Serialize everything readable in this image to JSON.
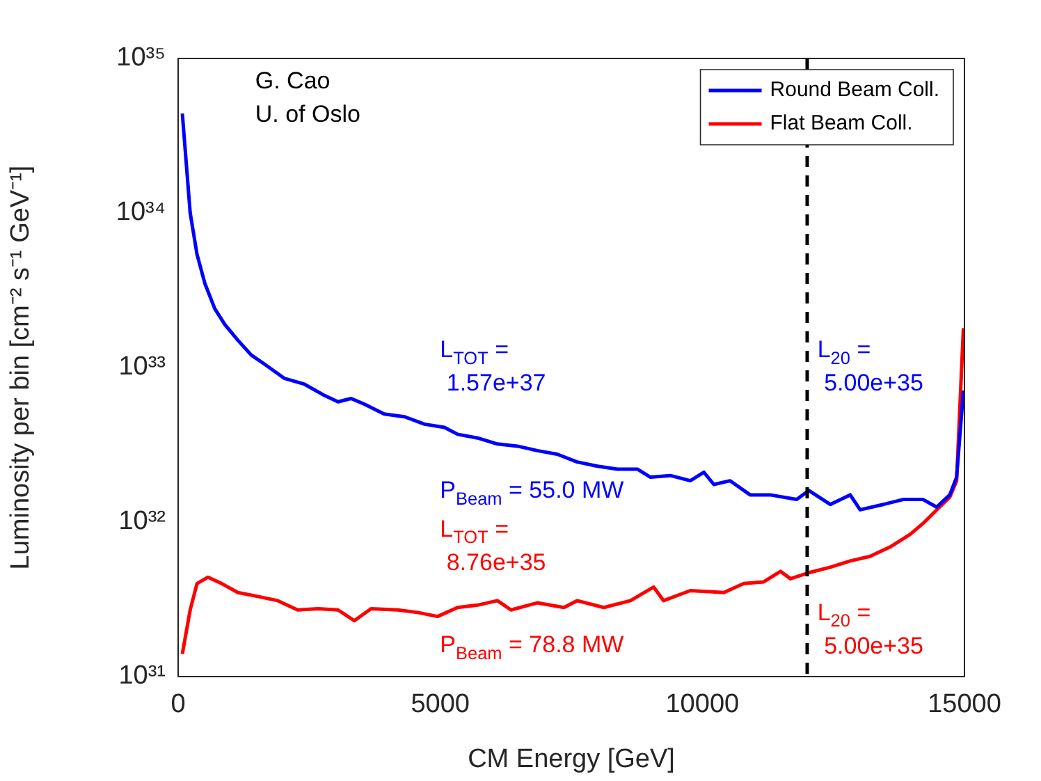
{
  "chart_data": {
    "type": "line",
    "xlabel": "CM Energy [GeV]",
    "ylabel": "Luminosity per bin [cm⁻² s⁻¹ GeV⁻¹]",
    "xlim": [
      0,
      15000
    ],
    "xticks": [
      0,
      5000,
      10000,
      15000
    ],
    "ylim": [
      1e+31,
      1e+35
    ],
    "yticks": [
      {
        "value": 1e+31,
        "label": "10³¹"
      },
      {
        "value": 1e+32,
        "label": "10³²"
      },
      {
        "value": 1e+33,
        "label": "10³³"
      },
      {
        "value": 1e+34,
        "label": "10³⁴"
      },
      {
        "value": 1e+35,
        "label": "10³⁵"
      }
    ],
    "log": "y",
    "grid": false,
    "legend": "top right",
    "marker": "none",
    "line_style": "solid",
    "series": [
      {
        "name": "Round Beam Coll.",
        "color": "#0000ff",
        "x": [
          80,
          230,
          360,
          510,
          700,
          890,
          1140,
          1400,
          1650,
          2030,
          2410,
          2790,
          3050,
          3300,
          3550,
          3930,
          4320,
          4700,
          5080,
          5330,
          5710,
          6090,
          6470,
          6850,
          7230,
          7610,
          8000,
          8380,
          8760,
          9010,
          9390,
          9770,
          10030,
          10220,
          10530,
          10910,
          11290,
          11800,
          12030,
          12440,
          12820,
          13010,
          13450,
          13830,
          14210,
          14470,
          14720,
          14850,
          14980
        ],
        "values": [
          4.4e+34,
          1e+34,
          5.4e+33,
          3.5e+33,
          2.4e+33,
          1.9e+33,
          1.5e+33,
          1.2e+33,
          1.05e+33,
          8.5e+32,
          7.8e+32,
          6.6e+32,
          6e+32,
          6.3e+32,
          5.8e+32,
          5e+32,
          4.8e+32,
          4.3e+32,
          4.1e+32,
          3.7e+32,
          3.5e+32,
          3.2e+32,
          3.1e+32,
          2.9e+32,
          2.75e+32,
          2.45e+32,
          2.3e+32,
          2.2e+32,
          2.2e+32,
          1.95e+32,
          2e+32,
          1.85e+32,
          2.1e+32,
          1.75e+32,
          1.85e+32,
          1.5e+32,
          1.5e+32,
          1.4e+32,
          1.6e+32,
          1.3e+32,
          1.5e+32,
          1.2e+32,
          1.3e+32,
          1.4e+32,
          1.4e+32,
          1.25e+32,
          1.5e+32,
          1.95e+32,
          7.1e+32
        ]
      },
      {
        "name": "Flat Beam Coll.",
        "color": "#ff0000",
        "x": [
          80,
          230,
          360,
          570,
          830,
          1140,
          1520,
          1900,
          2280,
          2670,
          3050,
          3360,
          3680,
          4190,
          4570,
          4950,
          5330,
          5710,
          6090,
          6350,
          6850,
          7360,
          7610,
          8120,
          8630,
          9070,
          9260,
          9770,
          10410,
          10790,
          11170,
          11490,
          11680,
          12030,
          12440,
          12820,
          13200,
          13580,
          13960,
          14210,
          14470,
          14720,
          14850,
          14980
        ],
        "values": [
          1.4e+31,
          2.7e+31,
          4e+31,
          4.4e+31,
          4e+31,
          3.5e+31,
          3.3e+31,
          3.1e+31,
          2.7e+31,
          2.75e+31,
          2.7e+31,
          2.3e+31,
          2.75e+31,
          2.7e+31,
          2.6e+31,
          2.45e+31,
          2.8e+31,
          2.9e+31,
          3.1e+31,
          2.7e+31,
          3e+31,
          2.8e+31,
          3.1e+31,
          2.8e+31,
          3.1e+31,
          3.8e+31,
          3.1e+31,
          3.6e+31,
          3.5e+31,
          4e+31,
          4.1e+31,
          4.8e+31,
          4.3e+31,
          4.7e+31,
          5.1e+31,
          5.6e+31,
          6e+31,
          6.9e+31,
          8.3e+31,
          9.8e+31,
          1.2e+32,
          1.45e+32,
          1.85e+32,
          1.8e+33
        ]
      }
    ],
    "ref_lines": [
      {
        "axis": "x",
        "value": 12000,
        "color": "#000000",
        "line_style": "dashed"
      }
    ],
    "annotations": [
      "G. Cao\nU. of Oslo",
      "L$_{TOT}$ =\n 1.57e+37",
      "P$_{Beam}$ = 55.0 MW",
      "L$_{TOT}$ =\n 8.76e+35",
      "P$_{Beam}$ = 78.8 MW",
      "L$_{20}$ =\n 5.00e+35",
      "L$_{20}$ =\n 5.00e+35"
    ]
  }
}
